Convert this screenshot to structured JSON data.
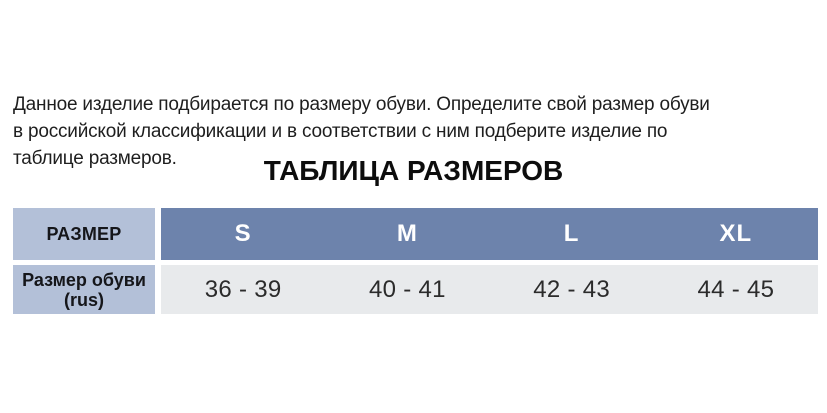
{
  "intro": {
    "lines": [
      "Данное изделие подбирается по размеру обуви. Определите свой размер обуви",
      "в российской классификации и в соответствии с ним подберите изделие по",
      "таблице размеров."
    ]
  },
  "section_title": "ТАБЛИЦА РАЗМЕРОВ",
  "size_table": {
    "corner_header": "РАЗМЕР",
    "row_label_lines": [
      "Размер обуви",
      "(rus)"
    ],
    "columns": [
      {
        "size": "S",
        "shoe_range": "36 - 39"
      },
      {
        "size": "M",
        "shoe_range": "40 - 41"
      },
      {
        "size": "L",
        "shoe_range": "42 - 43"
      },
      {
        "size": "XL",
        "shoe_range": "44 - 45"
      }
    ],
    "colors": {
      "corner_bg": "#b3c0d8",
      "header_bg": "#6d83ac",
      "values_bg": "#e8eaec",
      "header_text": "#ffffff"
    }
  }
}
